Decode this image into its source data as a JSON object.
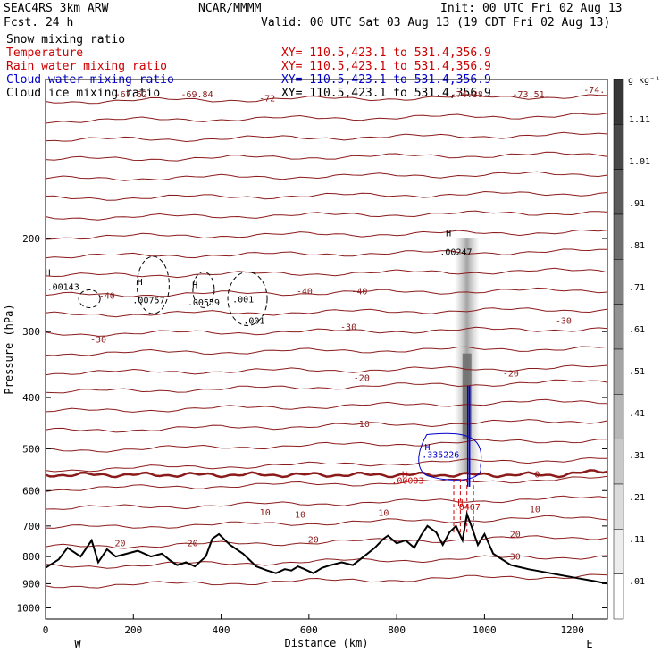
{
  "header": {
    "model": "SEAC4RS  3km ARW",
    "org": "NCAR/MMMM",
    "init": "Init: 00 UTC Fri 02 Aug 13",
    "fcst": "Fcst.   24 h",
    "valid": "Valid: 00 UTC Sat 03 Aug 13 (19 CDT Fri 02 Aug 13)"
  },
  "legend": [
    {
      "label": "Snow mixing ratio",
      "xy": "",
      "color": "#000000"
    },
    {
      "label": "Temperature",
      "xy": "XY= 110.5,423.1 to 531.4,356.9",
      "color": "#cc0000"
    },
    {
      "label": "Rain water mixing ratio",
      "xy": "XY= 110.5,423.1 to 531.4,356.9",
      "color": "#cc0000"
    },
    {
      "label": "Cloud water mixing ratio",
      "xy": "XY= 110.5,423.1 to 531.4,356.9",
      "color": "#0000cc"
    },
    {
      "label": "Cloud ice mixing ratio",
      "xy": "XY= 110.5,423.1 to 531.4,356.9",
      "color": "#000000"
    }
  ],
  "colorbar": {
    "unit": "g kg⁻¹",
    "ticks": [
      "1.11",
      "1.01",
      ".91",
      ".81",
      ".71",
      ".61",
      ".51",
      ".41",
      ".31",
      ".21",
      ".11",
      ".01"
    ]
  },
  "chart_data": {
    "type": "line",
    "xlabel": "Distance (km)",
    "ylabel": "Pressure (hPa)",
    "xlim": [
      0,
      1280
    ],
    "ylim": [
      1050,
      100
    ],
    "y_scale": "log-pressure",
    "x_ticks": [
      0,
      200,
      400,
      600,
      800,
      1000,
      1200
    ],
    "y_ticks": [
      200,
      300,
      400,
      500,
      600,
      700,
      800,
      900,
      1000
    ],
    "x_end_labels": {
      "left": "W",
      "right": "E"
    },
    "terrain": {
      "x": [
        0,
        30,
        50,
        80,
        105,
        120,
        140,
        160,
        185,
        210,
        240,
        265,
        285,
        300,
        320,
        340,
        365,
        380,
        395,
        420,
        450,
        480,
        505,
        525,
        545,
        560,
        575,
        590,
        610,
        630,
        650,
        675,
        700,
        725,
        750,
        770,
        780,
        800,
        820,
        840,
        855,
        870,
        890,
        905,
        920,
        935,
        950,
        960,
        970,
        985,
        1000,
        1020,
        1060,
        1100,
        1150,
        1200,
        1250,
        1280
      ],
      "p": [
        840,
        810,
        770,
        800,
        745,
        820,
        775,
        800,
        790,
        780,
        800,
        790,
        815,
        830,
        820,
        835,
        800,
        740,
        725,
        760,
        790,
        835,
        850,
        860,
        845,
        850,
        835,
        845,
        860,
        840,
        830,
        820,
        830,
        800,
        770,
        740,
        730,
        755,
        745,
        770,
        730,
        700,
        720,
        760,
        720,
        700,
        745,
        665,
        700,
        760,
        725,
        790,
        830,
        845,
        860,
        875,
        890,
        900
      ]
    },
    "temperature_contours": {
      "levels": [
        -70,
        -60,
        -50,
        -40,
        -30,
        -20,
        -10,
        0,
        10,
        20,
        30
      ],
      "freezing_level_p": 560,
      "labels": [
        {
          "text": "-67.62",
          "x": 195,
          "p": 108
        },
        {
          "text": "-69.84",
          "x": 345,
          "p": 108
        },
        {
          "text": "-72",
          "x": 505,
          "p": 110
        },
        {
          "text": "-74.38",
          "x": 960,
          "p": 108
        },
        {
          "text": "-73.51",
          "x": 1100,
          "p": 108
        },
        {
          "text": "-74.",
          "x": 1250,
          "p": 106
        },
        {
          "text": "-40",
          "x": 140,
          "p": 260
        },
        {
          "text": "-30",
          "x": 120,
          "p": 315
        },
        {
          "text": "-40",
          "x": 590,
          "p": 255
        },
        {
          "text": "-40",
          "x": 715,
          "p": 255
        },
        {
          "text": "-30",
          "x": 690,
          "p": 298
        },
        {
          "text": "-30",
          "x": 1180,
          "p": 290
        },
        {
          "text": "-20",
          "x": 720,
          "p": 372
        },
        {
          "text": "-20",
          "x": 1060,
          "p": 365
        },
        {
          "text": "-10",
          "x": 720,
          "p": 455
        },
        {
          "text": "0",
          "x": 1120,
          "p": 566
        },
        {
          "text": "10",
          "x": 500,
          "p": 668
        },
        {
          "text": "10",
          "x": 580,
          "p": 675
        },
        {
          "text": "10",
          "x": 770,
          "p": 670
        },
        {
          "text": "10",
          "x": 1115,
          "p": 660
        },
        {
          "text": "20",
          "x": 170,
          "p": 765
        },
        {
          "text": "20",
          "x": 335,
          "p": 765
        },
        {
          "text": "20",
          "x": 610,
          "p": 752
        },
        {
          "text": "20",
          "x": 1070,
          "p": 735
        },
        {
          "text": "30",
          "x": 1070,
          "p": 810
        }
      ]
    },
    "annotations": [
      {
        "text": "H",
        "x": 5,
        "p": 235,
        "color": "#000000"
      },
      {
        "text": ".00143",
        "x": 40,
        "p": 250,
        "color": "#000000"
      },
      {
        "text": "H",
        "x": 215,
        "p": 245,
        "color": "#000000"
      },
      {
        "text": ".00757",
        "x": 235,
        "p": 265,
        "color": "#000000"
      },
      {
        "text": "H",
        "x": 340,
        "p": 248,
        "color": "#000000"
      },
      {
        "text": ".00559",
        "x": 360,
        "p": 268,
        "color": "#000000"
      },
      {
        "text": ".001",
        "x": 450,
        "p": 264,
        "color": "#000000"
      },
      {
        "text": ".001",
        "x": 475,
        "p": 290,
        "color": "#000000"
      },
      {
        "text": "H",
        "x": 918,
        "p": 198,
        "color": "#000000"
      },
      {
        "text": ".00247",
        "x": 935,
        "p": 215,
        "color": "#000000"
      },
      {
        "text": "H",
        "x": 870,
        "p": 503,
        "color": "#0000cc"
      },
      {
        "text": ".335226",
        "x": 900,
        "p": 520,
        "color": "#0000cc"
      },
      {
        "text": "H",
        "x": 818,
        "p": 567,
        "color": "#cc0000"
      },
      {
        "text": ".00003",
        "x": 825,
        "p": 582,
        "color": "#cc0000"
      },
      {
        "text": "H",
        "x": 945,
        "p": 640,
        "color": "#cc0000"
      },
      {
        "text": ".0467",
        "x": 960,
        "p": 653,
        "color": "#cc0000"
      }
    ]
  }
}
